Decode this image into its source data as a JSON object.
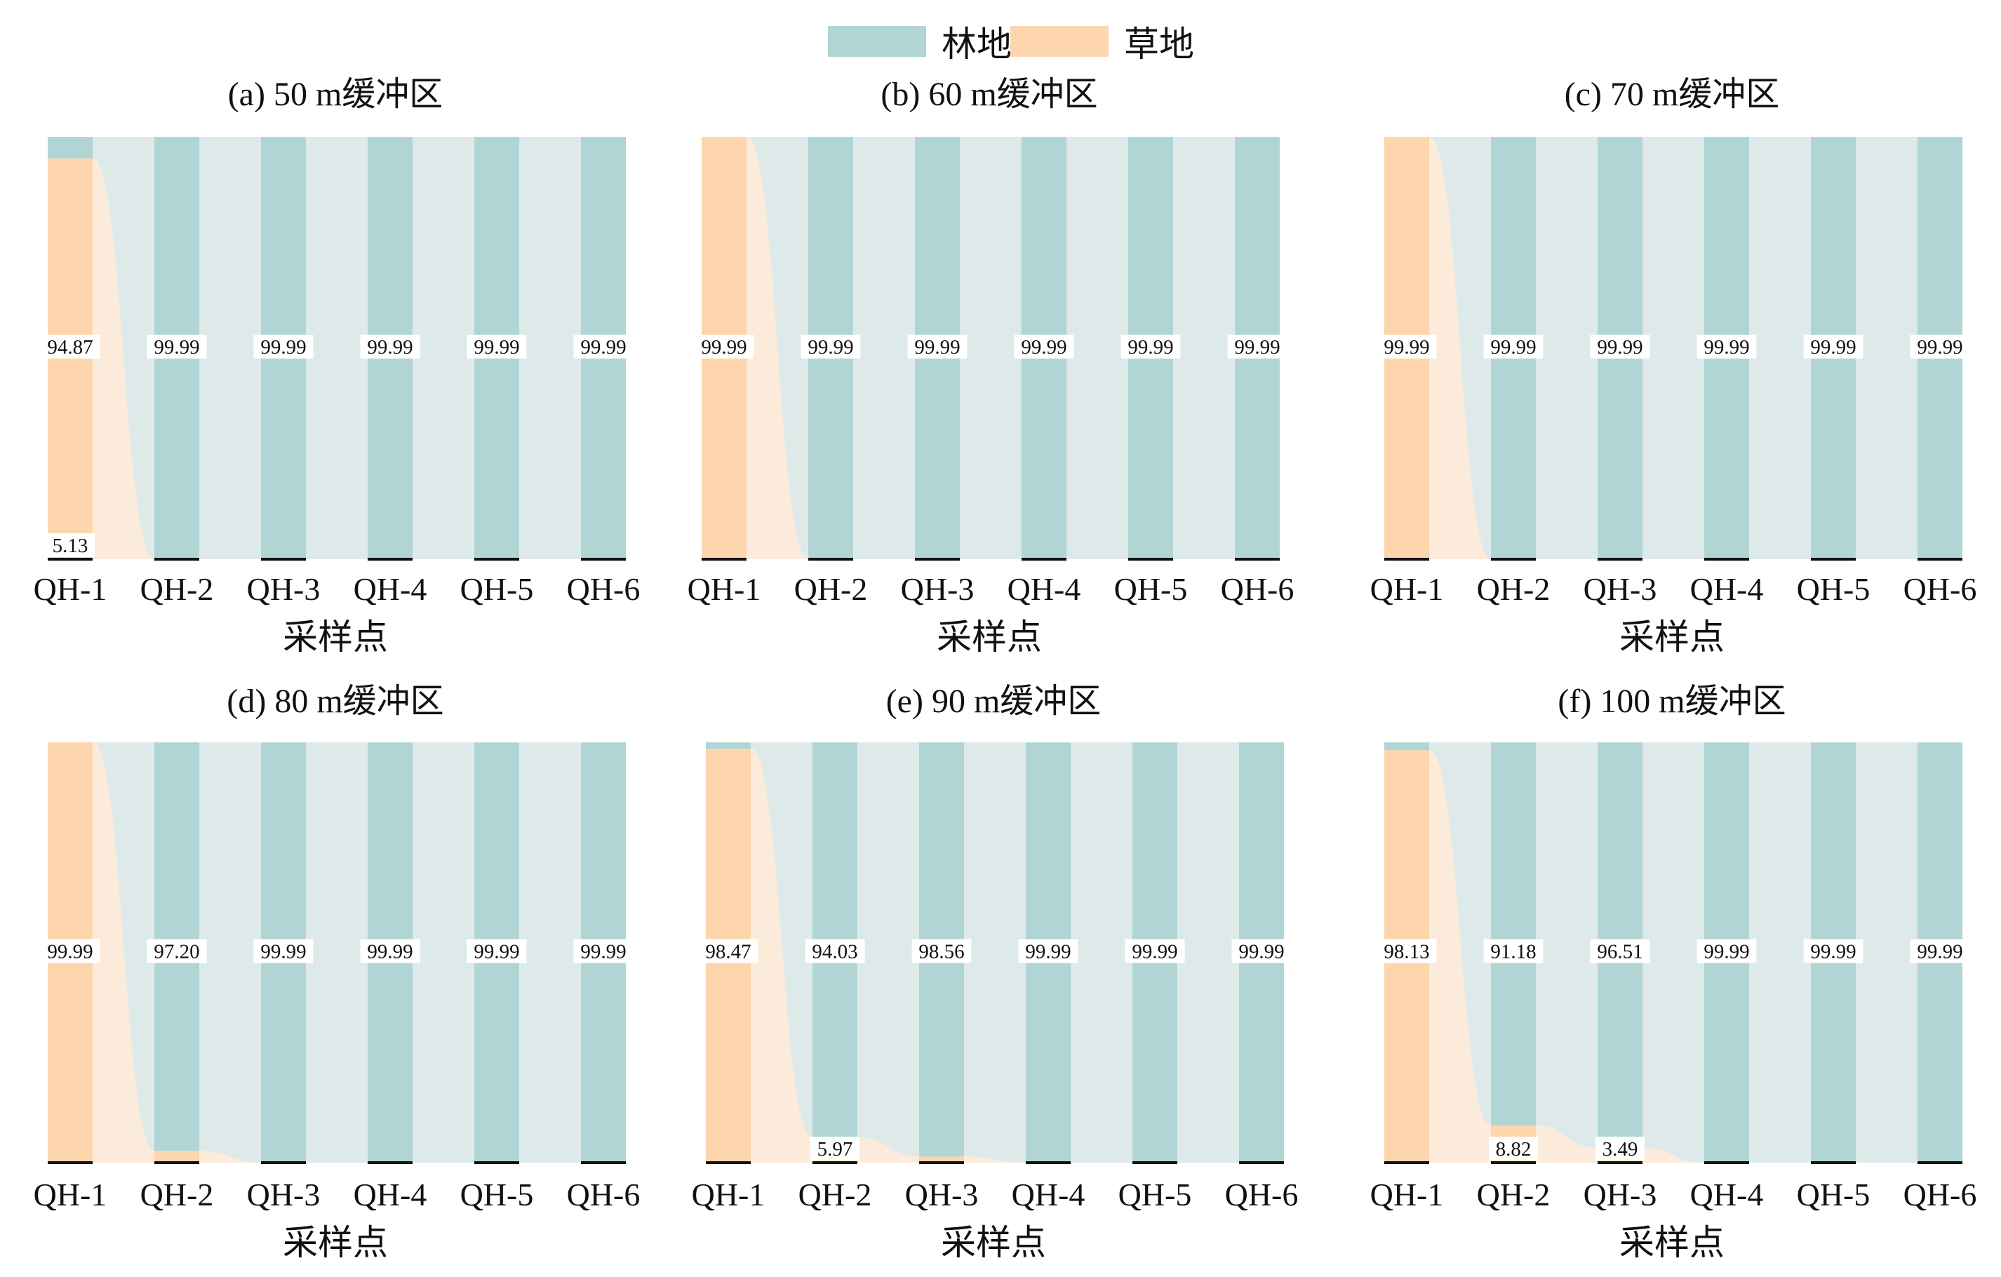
{
  "legend": {
    "items": [
      {
        "label": "林地",
        "color": "#b1d5d4"
      },
      {
        "label": "草地",
        "color": "#fdd6ad"
      }
    ]
  },
  "colors": {
    "forest": "#b1d5d4",
    "grass": "#fdd6ad",
    "forest_flow": "#dce9e8",
    "grass_flow": "#fbe8d4",
    "baseline": "#111111"
  },
  "chart_data": [
    {
      "type": "bar",
      "title": "(a) 50 m缓冲区",
      "xlabel": "采样点",
      "categories": [
        "QH-1",
        "QH-2",
        "QH-3",
        "QH-4",
        "QH-5",
        "QH-6"
      ],
      "stack_order_bottom_to_top": [
        "草地",
        "林地"
      ],
      "series": [
        {
          "name": "林地",
          "values": [
            5.13,
            99.99,
            99.99,
            99.99,
            99.99,
            99.99
          ]
        },
        {
          "name": "草地",
          "values": [
            94.87,
            0,
            0,
            0,
            0,
            0
          ]
        }
      ],
      "labels": [
        {
          "category": "QH-1",
          "text": "94.87",
          "position": "middle"
        },
        {
          "category": "QH-1",
          "text": "5.13",
          "position": "bottom"
        },
        {
          "category": "QH-2",
          "text": "99.99",
          "position": "middle"
        },
        {
          "category": "QH-3",
          "text": "99.99",
          "position": "middle"
        },
        {
          "category": "QH-4",
          "text": "99.99",
          "position": "middle"
        },
        {
          "category": "QH-5",
          "text": "99.99",
          "position": "middle"
        },
        {
          "category": "QH-6",
          "text": "99.99",
          "position": "middle"
        }
      ]
    },
    {
      "type": "bar",
      "title": "(b) 60 m缓冲区",
      "xlabel": "采样点",
      "categories": [
        "QH-1",
        "QH-2",
        "QH-3",
        "QH-4",
        "QH-5",
        "QH-6"
      ],
      "series": [
        {
          "name": "林地",
          "values": [
            0,
            99.99,
            99.99,
            99.99,
            99.99,
            99.99
          ]
        },
        {
          "name": "草地",
          "values": [
            99.99,
            0,
            0,
            0,
            0,
            0
          ]
        }
      ],
      "labels": [
        {
          "category": "QH-1",
          "text": "99.99",
          "position": "middle"
        },
        {
          "category": "QH-2",
          "text": "99.99",
          "position": "middle"
        },
        {
          "category": "QH-3",
          "text": "99.99",
          "position": "middle"
        },
        {
          "category": "QH-4",
          "text": "99.99",
          "position": "middle"
        },
        {
          "category": "QH-5",
          "text": "99.99",
          "position": "middle"
        },
        {
          "category": "QH-6",
          "text": "99.99",
          "position": "middle"
        }
      ]
    },
    {
      "type": "bar",
      "title": "(c) 70 m缓冲区",
      "xlabel": "采样点",
      "categories": [
        "QH-1",
        "QH-2",
        "QH-3",
        "QH-4",
        "QH-5",
        "QH-6"
      ],
      "series": [
        {
          "name": "林地",
          "values": [
            0,
            99.99,
            99.99,
            99.99,
            99.99,
            99.99
          ]
        },
        {
          "name": "草地",
          "values": [
            99.99,
            0,
            0,
            0,
            0,
            0
          ]
        }
      ],
      "labels": [
        {
          "category": "QH-1",
          "text": "99.99",
          "position": "middle"
        },
        {
          "category": "QH-2",
          "text": "99.99",
          "position": "middle"
        },
        {
          "category": "QH-3",
          "text": "99.99",
          "position": "middle"
        },
        {
          "category": "QH-4",
          "text": "99.99",
          "position": "middle"
        },
        {
          "category": "QH-5",
          "text": "99.99",
          "position": "middle"
        },
        {
          "category": "QH-6",
          "text": "99.99",
          "position": "middle"
        }
      ]
    },
    {
      "type": "bar",
      "title": "(d) 80 m缓冲区",
      "xlabel": "采样点",
      "categories": [
        "QH-1",
        "QH-2",
        "QH-3",
        "QH-4",
        "QH-5",
        "QH-6"
      ],
      "series": [
        {
          "name": "林地",
          "values": [
            0,
            97.2,
            99.99,
            99.99,
            99.99,
            99.99
          ]
        },
        {
          "name": "草地",
          "values": [
            99.99,
            2.8,
            0,
            0,
            0,
            0
          ]
        }
      ],
      "labels": [
        {
          "category": "QH-1",
          "text": "99.99",
          "position": "middle"
        },
        {
          "category": "QH-2",
          "text": "97.20",
          "position": "middle"
        },
        {
          "category": "QH-3",
          "text": "99.99",
          "position": "middle"
        },
        {
          "category": "QH-4",
          "text": "99.99",
          "position": "middle"
        },
        {
          "category": "QH-5",
          "text": "99.99",
          "position": "middle"
        },
        {
          "category": "QH-6",
          "text": "99.99",
          "position": "middle"
        }
      ]
    },
    {
      "type": "bar",
      "title": "(e) 90 m缓冲区",
      "xlabel": "采样点",
      "categories": [
        "QH-1",
        "QH-2",
        "QH-3",
        "QH-4",
        "QH-5",
        "QH-6"
      ],
      "series": [
        {
          "name": "林地",
          "values": [
            1.53,
            94.03,
            98.56,
            99.99,
            99.99,
            99.99
          ]
        },
        {
          "name": "草地",
          "values": [
            98.47,
            5.97,
            1.44,
            0,
            0,
            0
          ]
        }
      ],
      "labels": [
        {
          "category": "QH-1",
          "text": "98.47",
          "position": "middle"
        },
        {
          "category": "QH-2",
          "text": "94.03",
          "position": "middle"
        },
        {
          "category": "QH-2",
          "text": "5.97",
          "position": "bottom"
        },
        {
          "category": "QH-3",
          "text": "98.56",
          "position": "middle"
        },
        {
          "category": "QH-4",
          "text": "99.99",
          "position": "middle"
        },
        {
          "category": "QH-5",
          "text": "99.99",
          "position": "middle"
        },
        {
          "category": "QH-6",
          "text": "99.99",
          "position": "middle"
        }
      ]
    },
    {
      "type": "bar",
      "title": "(f) 100 m缓冲区",
      "xlabel": "采样点",
      "categories": [
        "QH-1",
        "QH-2",
        "QH-3",
        "QH-4",
        "QH-5",
        "QH-6"
      ],
      "series": [
        {
          "name": "林地",
          "values": [
            1.87,
            91.18,
            96.51,
            99.99,
            99.99,
            99.99
          ]
        },
        {
          "name": "草地",
          "values": [
            98.13,
            8.82,
            3.49,
            0,
            0,
            0
          ]
        }
      ],
      "labels": [
        {
          "category": "QH-1",
          "text": "98.13",
          "position": "middle"
        },
        {
          "category": "QH-2",
          "text": "91.18",
          "position": "middle"
        },
        {
          "category": "QH-2",
          "text": "8.82",
          "position": "bottom"
        },
        {
          "category": "QH-3",
          "text": "96.51",
          "position": "middle"
        },
        {
          "category": "QH-3",
          "text": "3.49",
          "position": "bottom"
        },
        {
          "category": "QH-4",
          "text": "99.99",
          "position": "middle"
        },
        {
          "category": "QH-5",
          "text": "99.99",
          "position": "middle"
        },
        {
          "category": "QH-6",
          "text": "99.99",
          "position": "middle"
        }
      ]
    }
  ]
}
